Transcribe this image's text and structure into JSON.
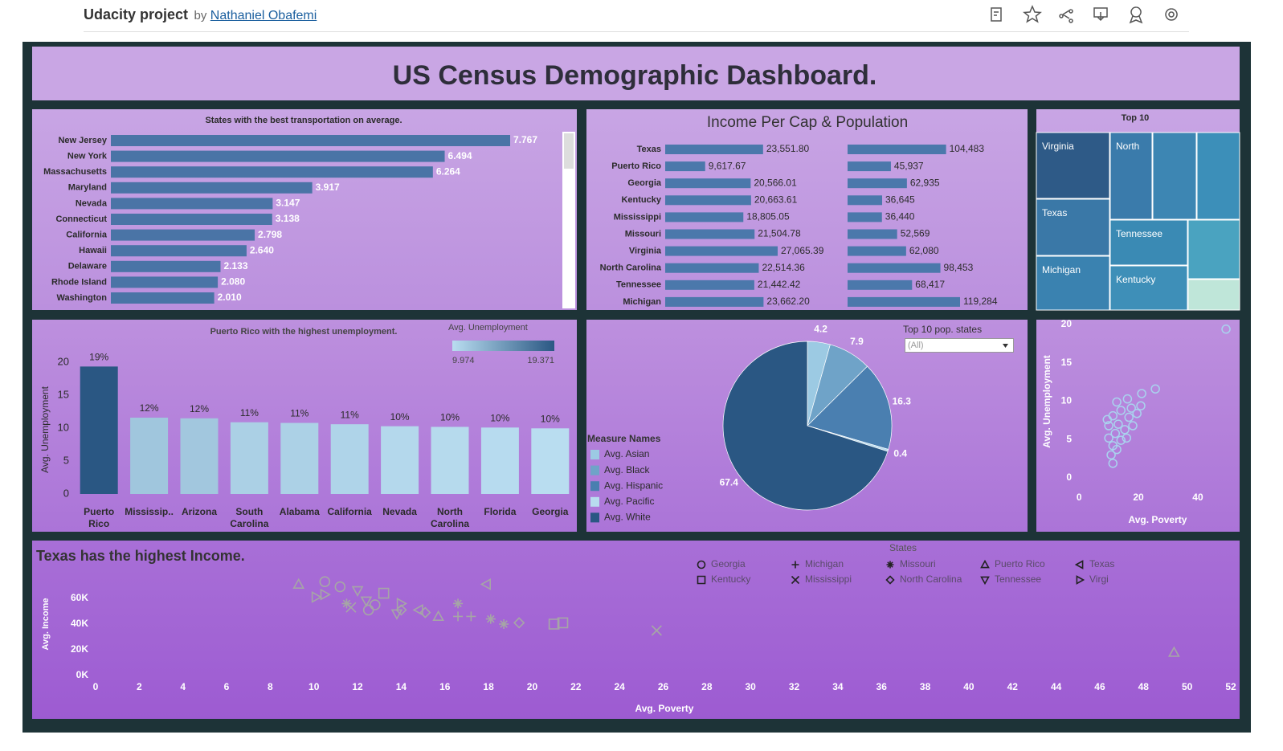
{
  "header": {
    "title": "Udacity project",
    "by": "by",
    "author": "Nathaniel Obafemi"
  },
  "dashboard_title": "US Census Demographic Dashboard.",
  "chart_data": [
    {
      "type": "hbar",
      "title": "States with the best transportation on average.",
      "categories": [
        "New Jersey",
        "New York",
        "Massachusetts",
        "Maryland",
        "Nevada",
        "Connecticut",
        "California",
        "Hawaii",
        "Delaware",
        "Rhode Island",
        "Washington"
      ],
      "values": [
        7.767,
        6.494,
        6.264,
        3.917,
        3.147,
        3.138,
        2.798,
        2.64,
        2.133,
        2.08,
        2.01
      ],
      "value_labels": [
        "7.767",
        "6.494",
        "6.264",
        "3.917",
        "3.147",
        "3.138",
        "2.798",
        "2.640",
        "2.133",
        "2.080",
        "2.010"
      ],
      "color": "#4a74a6"
    },
    {
      "type": "hbar_pair",
      "title": "Income Per Cap & Population",
      "categories": [
        "Texas",
        "Puerto Rico",
        "Georgia",
        "Kentucky",
        "Mississippi",
        "Missouri",
        "Virginia",
        "North Carolina",
        "Tennessee",
        "Michigan"
      ],
      "series": [
        {
          "color": "#4b78ab",
          "values": [
            23551.8,
            9617.67,
            20566.01,
            20663.61,
            18805.05,
            21504.78,
            27065.39,
            22514.36,
            21442.42,
            23662.2
          ],
          "value_labels": [
            "23,551.80",
            "9,617.67",
            "20,566.01",
            "20,663.61",
            "18,805.05",
            "21,504.78",
            "27,065.39",
            "22,514.36",
            "21,442.42",
            "23,662.20"
          ]
        },
        {
          "color": "#4b78ab",
          "values": [
            104483,
            45937,
            62935,
            36645,
            36440,
            52569,
            62080,
            98453,
            68417,
            119284
          ],
          "value_labels": [
            "104,483",
            "45,937",
            "62,935",
            "36,645",
            "36,440",
            "52,569",
            "62,080",
            "98,453",
            "68,417",
            "119,284"
          ]
        }
      ]
    },
    {
      "type": "treemap",
      "title": "Top 10",
      "categories": [
        "Virginia",
        "North",
        null,
        null,
        "Texas",
        "Tennessee",
        null,
        "Michigan",
        "Kentucky",
        null
      ],
      "values": [
        74,
        56,
        57,
        57,
        63,
        54,
        47,
        60,
        53,
        24
      ],
      "colors": [
        "#2e5a87",
        "#3a7bab",
        "#3d86b3",
        "#3c8fb9",
        "#3a78a7",
        "#3a8ab4",
        "#4aa3c0",
        "#3a82b0",
        "#3e8fb8",
        "#bfe6d9"
      ]
    },
    {
      "type": "bar",
      "title": "Puerto Rico with the highest unemployment.",
      "y_label": "Avg. Unemployment",
      "categories": [
        "Puerto Rico",
        "Mississip..",
        "Arizona",
        "South Carolina",
        "Alabama",
        "California",
        "Nevada",
        "North Carolina",
        "Florida",
        "Georgia"
      ],
      "values": [
        19.371,
        11.6,
        11.5,
        10.9,
        10.8,
        10.6,
        10.3,
        10.2,
        10.1,
        9.974
      ],
      "value_labels": [
        "19%",
        "12%",
        "12%",
        "11%",
        "11%",
        "11%",
        "10%",
        "10%",
        "10%",
        "10%"
      ],
      "ylim": [
        0,
        21
      ],
      "yticks": [
        0,
        5,
        10,
        15,
        20
      ],
      "color_legend": {
        "title": "Avg. Unemployment",
        "min": 9.974,
        "max": 19.371,
        "colors": [
          "#b9ddf0",
          "#2a5783"
        ]
      }
    },
    {
      "type": "pie",
      "legend_title": "Measure Names",
      "categories": [
        "Avg. Asian",
        "Avg. Black",
        "Avg. Hispanic",
        "Avg. Pacific",
        "Avg. White"
      ],
      "values": [
        4.2,
        7.9,
        16.3,
        0.4,
        67.4
      ],
      "colors": [
        "#9ccae3",
        "#6fa3c8",
        "#4a7fb0",
        "#b8dcef",
        "#2a5783"
      ],
      "filter": {
        "label": "Top 10 pop. states",
        "value": "(All)"
      }
    },
    {
      "type": "scatter",
      "x_label": "Avg. Poverty",
      "y_label": "Avg. Unemployment",
      "x": [
        49.5,
        25.7,
        21.1,
        17.6,
        16.3,
        12.7,
        14.1,
        11.4,
        9.5,
        13.2,
        15.4,
        12.2,
        10.0,
        14.1,
        11.4,
        10.8,
        11.4,
        16.8,
        19.5,
        20.8,
        16.0,
        18.1,
        12.7,
        10.0
      ],
      "y": [
        19.4,
        11.6,
        11.0,
        9.1,
        10.3,
        9.9,
        8.8,
        8.1,
        7.6,
        7.0,
        6.3,
        5.8,
        5.2,
        4.9,
        4.2,
        3.0,
        1.9,
        7.9,
        8.4,
        9.4,
        5.2,
        6.8,
        3.7,
        6.8
      ],
      "color": "#a9d3ee",
      "xlim": [
        -6,
        53
      ],
      "xticks": [
        0,
        20,
        40
      ],
      "ylim": [
        -1,
        21
      ],
      "yticks": [
        0,
        5,
        10,
        15,
        20
      ]
    },
    {
      "type": "shape_scatter",
      "title": "Texas has the highest Income.",
      "legend_title": "States",
      "x_label": "Avg. Poverty",
      "y_label": "Avg. Income",
      "color": "#a6a6a6",
      "xlim": [
        -1,
        52.5
      ],
      "xticks": [
        0,
        2,
        4,
        6,
        8,
        10,
        12,
        14,
        16,
        18,
        20,
        22,
        24,
        26,
        28,
        30,
        32,
        34,
        36,
        38,
        40,
        42,
        44,
        46,
        48,
        50,
        52
      ],
      "ylim": [
        -5000,
        78000
      ],
      "yticks": [
        {
          "value": 0,
          "label": "0K"
        },
        {
          "value": 20000,
          "label": "20K"
        },
        {
          "value": 40000,
          "label": "40K"
        },
        {
          "value": 60000,
          "label": "60K"
        }
      ],
      "series": [
        {
          "name": "Georgia",
          "shape": "circle",
          "x": [
            10.5,
            11.2,
            12.5,
            12.8
          ],
          "y": [
            73000,
            69000,
            51000,
            55000
          ]
        },
        {
          "name": "Kentucky",
          "shape": "square",
          "x": [
            13.2,
            21.0,
            21.4
          ],
          "y": [
            64000,
            40000,
            41000
          ]
        },
        {
          "name": "Michigan",
          "shape": "plus",
          "x": [
            16.6,
            17.2
          ],
          "y": [
            46000,
            46000
          ]
        },
        {
          "name": "Mississippi",
          "shape": "cross",
          "x": [
            25.7,
            11.7
          ],
          "y": [
            35000,
            53000
          ]
        },
        {
          "name": "Missouri",
          "shape": "asterisk",
          "x": [
            11.5,
            16.6,
            18.7,
            18.1
          ],
          "y": [
            56000,
            56000,
            40000,
            44000
          ]
        },
        {
          "name": "North Carolina",
          "shape": "diamond",
          "x": [
            14.0,
            15.1,
            19.4
          ],
          "y": [
            51000,
            49000,
            41000
          ]
        },
        {
          "name": "Puerto Rico",
          "shape": "tri_up",
          "x": [
            9.3,
            15.7,
            49.4
          ],
          "y": [
            71000,
            46000,
            18000
          ]
        },
        {
          "name": "Tennessee",
          "shape": "tri_down",
          "x": [
            12.0,
            12.4,
            13.8
          ],
          "y": [
            66000,
            58000,
            48000
          ]
        },
        {
          "name": "Texas",
          "shape": "tri_left",
          "x": [
            17.9,
            14.8
          ],
          "y": [
            71000,
            51000
          ]
        },
        {
          "name": "Virgi",
          "shape": "tri_right",
          "x": [
            10.1,
            10.5,
            14.0
          ],
          "y": [
            61000,
            63000,
            56000
          ]
        }
      ]
    }
  ]
}
